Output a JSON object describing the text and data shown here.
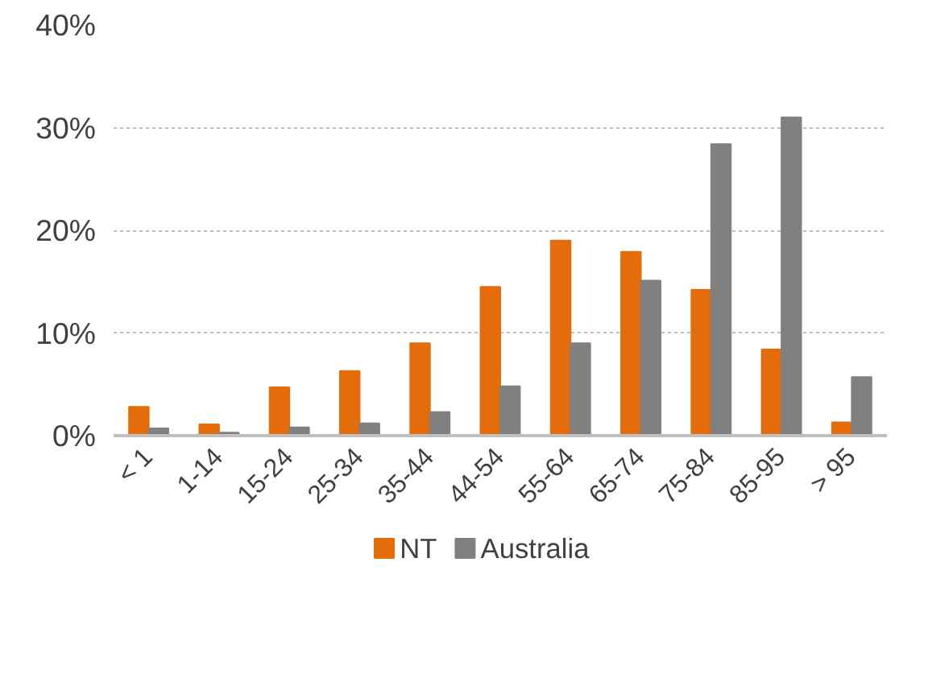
{
  "chart_data": {
    "type": "bar",
    "categories": [
      "< 1",
      "1-14",
      "15-24",
      "25-34",
      "35-44",
      "44-54",
      "55-64",
      "65-74",
      "75-84",
      "85-95",
      "> 95"
    ],
    "series": [
      {
        "name": "NT",
        "color": "#e46c0a",
        "values": [
          2.8,
          1.1,
          4.7,
          6.3,
          9.0,
          14.5,
          19.0,
          17.9,
          14.2,
          8.4,
          1.3
        ]
      },
      {
        "name": "Australia",
        "color": "#808080",
        "values": [
          0.7,
          0.3,
          0.8,
          1.2,
          2.3,
          4.8,
          9.0,
          15.1,
          28.4,
          31.0,
          5.7
        ]
      }
    ],
    "ylim": [
      0,
      40
    ],
    "yticks": [
      {
        "value": 0,
        "label": "0%"
      },
      {
        "value": 10,
        "label": "10%"
      },
      {
        "value": 20,
        "label": "20%"
      },
      {
        "value": 30,
        "label": "30%"
      },
      {
        "value": 40,
        "label": "40%"
      }
    ],
    "grid": "y",
    "legend": "bottom"
  }
}
